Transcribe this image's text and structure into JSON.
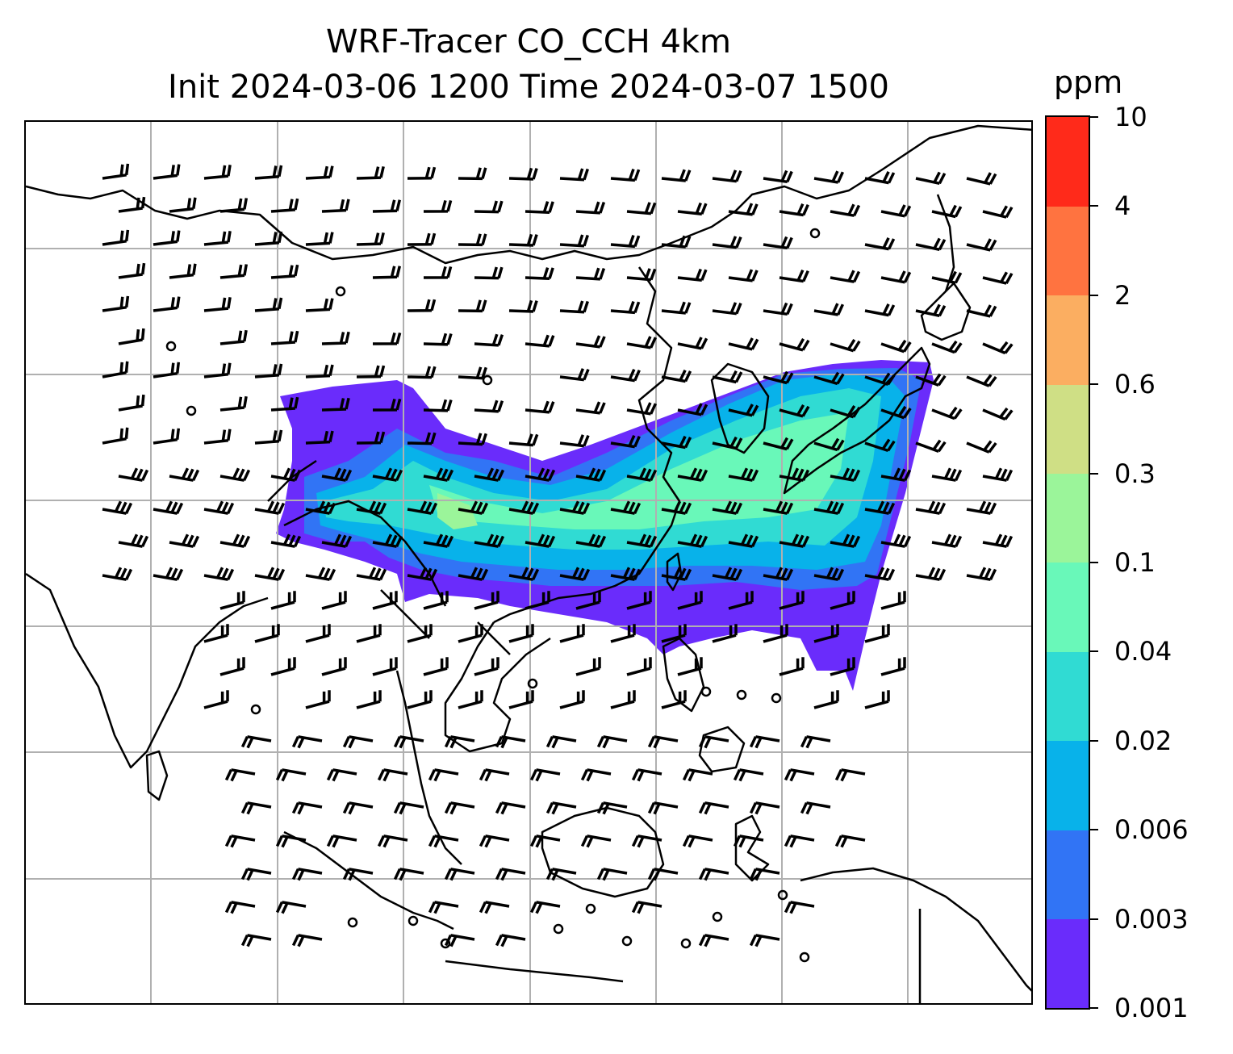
{
  "title_line1": "WRF-Tracer CO_CCH 4km",
  "title_line2": "Init 2024-03-06 1200 Time 2024-03-07 1500",
  "colorbar": {
    "unit": "ppm",
    "levels": [
      "0.001",
      "0.003",
      "0.006",
      "0.02",
      "0.04",
      "0.1",
      "0.3",
      "0.6",
      "2",
      "4",
      "10"
    ],
    "colors": [
      "#6a2cfb",
      "#3174f5",
      "#08b2ea",
      "#30dbd3",
      "#69f8b9",
      "#9bf59a",
      "#cfdf85",
      "#fbae61",
      "#ff7340",
      "#ff2a1a"
    ]
  },
  "map": {
    "gridlines": true,
    "coastline_color": "#000000",
    "wind_barbs": true,
    "plume_description_levels_used": [
      "0.001",
      "0.003",
      "0.006",
      "0.02",
      "0.04",
      "0.1"
    ]
  }
}
